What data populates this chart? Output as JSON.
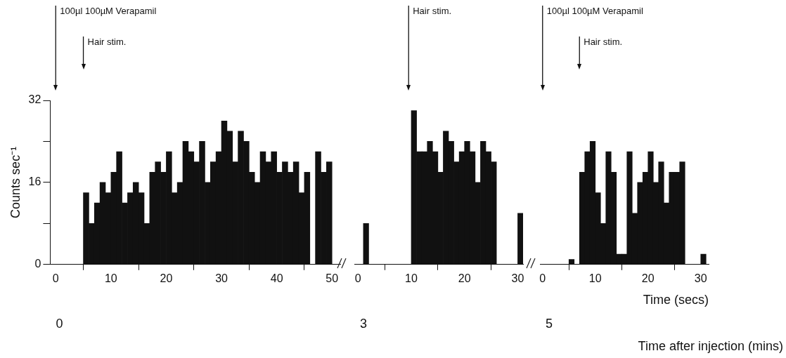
{
  "chart_data": [
    {
      "type": "histogram",
      "ylabel": "Counts sec⁻¹",
      "color": "#111111",
      "bins": [
        0,
        1,
        2,
        3,
        4,
        5,
        6,
        7,
        8,
        9,
        10,
        11,
        12,
        13,
        14,
        15,
        16,
        17,
        18,
        19,
        20,
        21,
        22,
        23,
        24,
        25,
        26,
        27,
        28,
        29,
        30,
        31,
        32,
        33,
        34,
        35,
        36,
        37,
        38,
        39,
        40,
        41,
        42,
        43,
        44,
        45,
        46,
        47,
        48,
        49,
        50
      ],
      "values": [
        0,
        0,
        0,
        0,
        0,
        14,
        8,
        12,
        16,
        14,
        18,
        22,
        12,
        14,
        16,
        14,
        8,
        18,
        20,
        18,
        22,
        14,
        16,
        24,
        22,
        20,
        24,
        16,
        20,
        22,
        28,
        26,
        20,
        26,
        24,
        18,
        16,
        22,
        20,
        22,
        18,
        20,
        18,
        20,
        14,
        18,
        0,
        22,
        18,
        20
      ],
      "xlim": [
        -1,
        51.5
      ],
      "xticks": [
        0,
        10,
        20,
        30,
        40,
        50
      ],
      "ylim": [
        0,
        32
      ],
      "yticks": [
        0,
        {
          "value": 8,
          "label": null
        },
        16,
        {
          "value": 24,
          "label": null
        },
        32
      ],
      "grid": false,
      "legend": false,
      "ref_lines": [
        {
          "axis": "x",
          "value": 0,
          "label": "100µl 100µM Verapamil"
        },
        {
          "axis": "x",
          "value": 5,
          "label": "Hair stim."
        }
      ],
      "annotations": [
        "0"
      ]
    },
    {
      "type": "histogram",
      "color": "#111111",
      "bins": [
        0,
        1,
        2,
        3,
        4,
        5,
        6,
        7,
        8,
        9,
        10,
        11,
        12,
        13,
        14,
        15,
        16,
        17,
        18,
        19,
        20,
        21,
        22,
        23,
        24,
        25,
        26,
        27,
        28,
        29,
        30,
        31
      ],
      "values": [
        0,
        8,
        0,
        0,
        0,
        0,
        0,
        0,
        0,
        0,
        30,
        22,
        22,
        24,
        22,
        18,
        26,
        24,
        20,
        22,
        24,
        22,
        16,
        24,
        22,
        20,
        0,
        0,
        0,
        0,
        10
      ],
      "xlim": [
        -0.7,
        31
      ],
      "xticks": [
        0,
        10,
        20,
        30
      ],
      "ylim": [
        0,
        32
      ],
      "tick_labels": "x",
      "grid": false,
      "legend": false,
      "ref_lines": [
        {
          "axis": "x",
          "value": 9.5,
          "label": "Hair stim."
        }
      ],
      "annotations": [
        "3"
      ]
    },
    {
      "type": "histogram",
      "color": "#111111",
      "xlabel": "Time (secs)",
      "bins": [
        0,
        1,
        2,
        3,
        4,
        5,
        6,
        7,
        8,
        9,
        10,
        11,
        12,
        13,
        14,
        15,
        16,
        17,
        18,
        19,
        20,
        21,
        22,
        23,
        24,
        25,
        26,
        27,
        28,
        29,
        30,
        31
      ],
      "values": [
        0,
        0,
        0,
        0,
        0,
        1,
        0,
        18,
        22,
        24,
        14,
        8,
        22,
        18,
        2,
        2,
        22,
        10,
        16,
        18,
        22,
        16,
        20,
        12,
        18,
        18,
        20,
        0,
        0,
        0,
        2
      ],
      "xlim": [
        -0.5,
        31.5
      ],
      "xticks": [
        0,
        10,
        20,
        30
      ],
      "ylim": [
        0,
        32
      ],
      "tick_labels": "x",
      "grid": false,
      "legend": false,
      "ref_lines": [
        {
          "axis": "x",
          "value": 0,
          "label": "100µl 100µM Verapamil"
        },
        {
          "axis": "x",
          "value": 7,
          "label": "Hair stim."
        }
      ],
      "annotations": [
        "5",
        "Time after injection (mins)"
      ]
    }
  ]
}
